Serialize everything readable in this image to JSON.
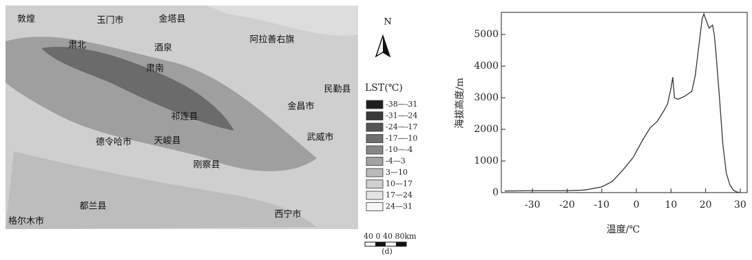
{
  "map": {
    "places": [
      "敦煌",
      "玉门市",
      "金塔县",
      "阿拉善右旗",
      "肃北",
      "酒泉",
      "肃南",
      "民勤县",
      "金昌市",
      "祁连县",
      "德令哈市",
      "天峻县",
      "武威市",
      "刚察县",
      "格尔木市",
      "都兰县",
      "西宁市"
    ],
    "north": "N",
    "legend_title": "LST(℃)",
    "legend": [
      {
        "label": "-38—-31",
        "color": "#1e1e1e"
      },
      {
        "label": "-31—-24",
        "color": "#3a3a3a"
      },
      {
        "label": "-24—-17",
        "color": "#555555"
      },
      {
        "label": "-17—-10",
        "color": "#6e6e6e"
      },
      {
        "label": "-10—-4",
        "color": "#888888"
      },
      {
        "label": "-4—3",
        "color": "#a2a2a2"
      },
      {
        "label": "3—10",
        "color": "#bbbbbb"
      },
      {
        "label": "10—17",
        "color": "#d0d0d0"
      },
      {
        "label": "17—24",
        "color": "#e4e4e4"
      },
      {
        "label": "24—31",
        "color": "#f7f7f7"
      }
    ],
    "scale": "40 0 40 80km"
  },
  "caption": "(d)",
  "chart_data": {
    "type": "line",
    "xlabel": "温度/℃",
    "ylabel": "海拔高度/m",
    "x": [
      -38,
      -30,
      -20,
      -15,
      -10,
      -7,
      -4,
      -1,
      0,
      2,
      4,
      6,
      8,
      9,
      10,
      10.5,
      11,
      12,
      14,
      16,
      17,
      18,
      19,
      19.5,
      20,
      21,
      22,
      22.5,
      23,
      24,
      25,
      26,
      27,
      28,
      29,
      30
    ],
    "series": [
      {
        "color": "#333333",
        "values": [
          50,
          60,
          60,
          80,
          180,
          350,
          700,
          1100,
          1300,
          1700,
          2050,
          2250,
          2600,
          2800,
          3300,
          3650,
          3000,
          2950,
          3050,
          3200,
          3700,
          4600,
          5500,
          5650,
          5500,
          5200,
          5300,
          5000,
          4400,
          3000,
          1500,
          600,
          250,
          80,
          20,
          0
        ]
      }
    ],
    "xlim": [
      -39,
      32
    ],
    "ylim": [
      0,
      5700
    ],
    "xticks": [
      -30,
      -20,
      -10,
      0,
      10,
      20,
      30
    ],
    "yticks": [
      0,
      1000,
      2000,
      3000,
      4000,
      5000
    ]
  }
}
